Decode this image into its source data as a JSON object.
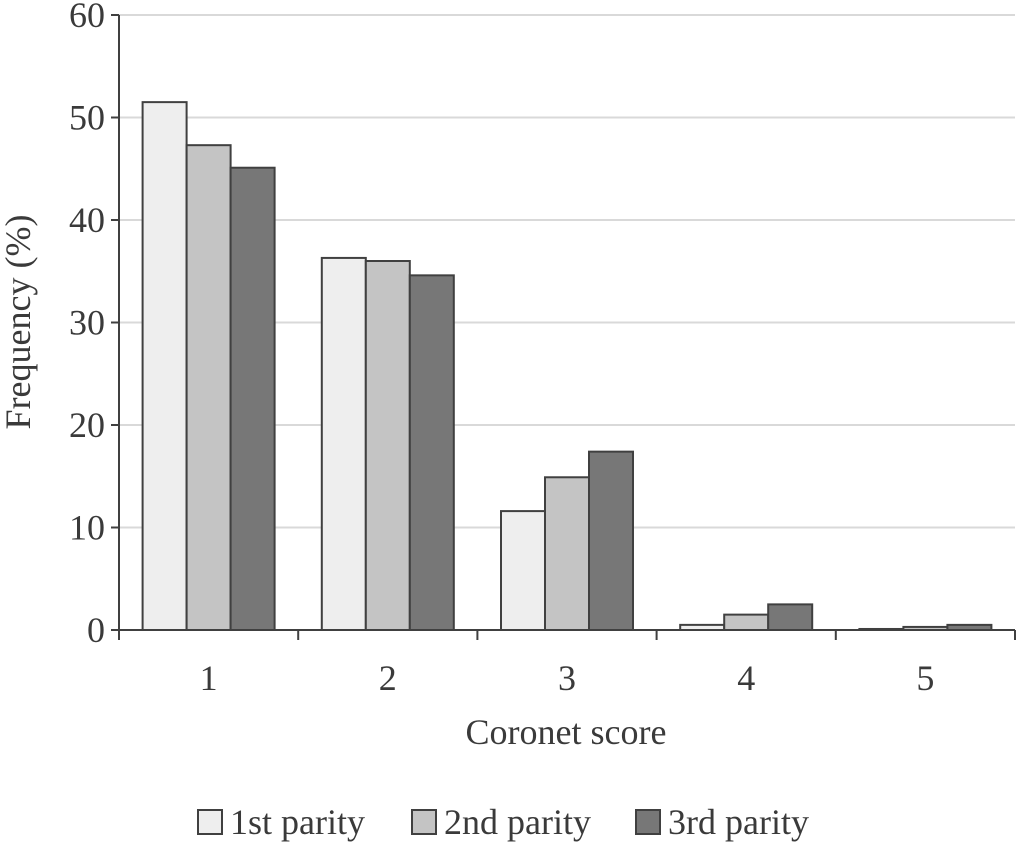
{
  "chart_data": {
    "type": "bar",
    "categories": [
      "1",
      "2",
      "3",
      "4",
      "5"
    ],
    "series": [
      {
        "name": "1st parity",
        "color": "#eeeeee",
        "values": [
          51.5,
          36.3,
          11.6,
          0.5,
          0.1
        ]
      },
      {
        "name": "2nd parity",
        "color": "#c4c4c4",
        "values": [
          47.3,
          36.0,
          14.9,
          1.5,
          0.3
        ]
      },
      {
        "name": "3rd parity",
        "color": "#777777",
        "values": [
          45.1,
          34.6,
          17.4,
          2.5,
          0.5
        ]
      }
    ],
    "title": "",
    "xlabel": "Coronet score",
    "ylabel": "Frequency (%)",
    "ylim": [
      0,
      60
    ],
    "yticks": [
      0,
      10,
      20,
      30,
      40,
      50,
      60
    ],
    "grid": true,
    "legend_position": "bottom"
  }
}
